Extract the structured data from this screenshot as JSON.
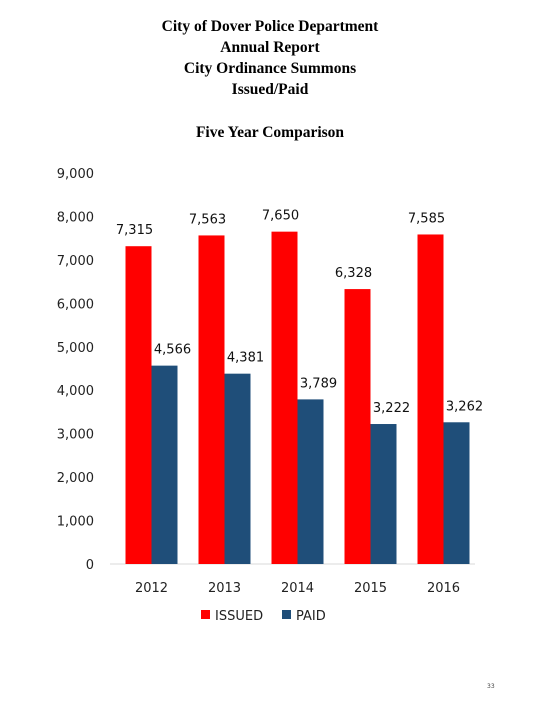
{
  "header": {
    "line1": "City of Dover Police Department",
    "line2": "Annual Report",
    "line3": "City Ordinance Summons",
    "line4": "Issued/Paid"
  },
  "page_number": "33",
  "chart_data": {
    "type": "bar",
    "title": "Five Year Comparison",
    "categories": [
      "2012",
      "2013",
      "2014",
      "2015",
      "2016"
    ],
    "series": [
      {
        "name": "ISSUED",
        "color": "#ff0000",
        "values": [
          7315,
          7563,
          7650,
          6328,
          7585
        ],
        "labels": [
          "7,315",
          "7,563",
          "7,650",
          "6,328",
          "7,585"
        ]
      },
      {
        "name": "PAID",
        "color": "#1f4e79",
        "values": [
          4566,
          4381,
          3789,
          3222,
          3262
        ],
        "labels": [
          "4,566",
          "4,381",
          "3,789",
          "3,222",
          "3,262"
        ]
      }
    ],
    "ylim": [
      0,
      9000
    ],
    "yticks": [
      0,
      1000,
      2000,
      3000,
      4000,
      5000,
      6000,
      7000,
      8000,
      9000
    ],
    "ytick_labels": [
      "0",
      "1,000",
      "2,000",
      "3,000",
      "4,000",
      "5,000",
      "6,000",
      "7,000",
      "8,000",
      "9,000"
    ],
    "xlabel": "",
    "ylabel": "",
    "grid": false,
    "legend": "bottom"
  }
}
